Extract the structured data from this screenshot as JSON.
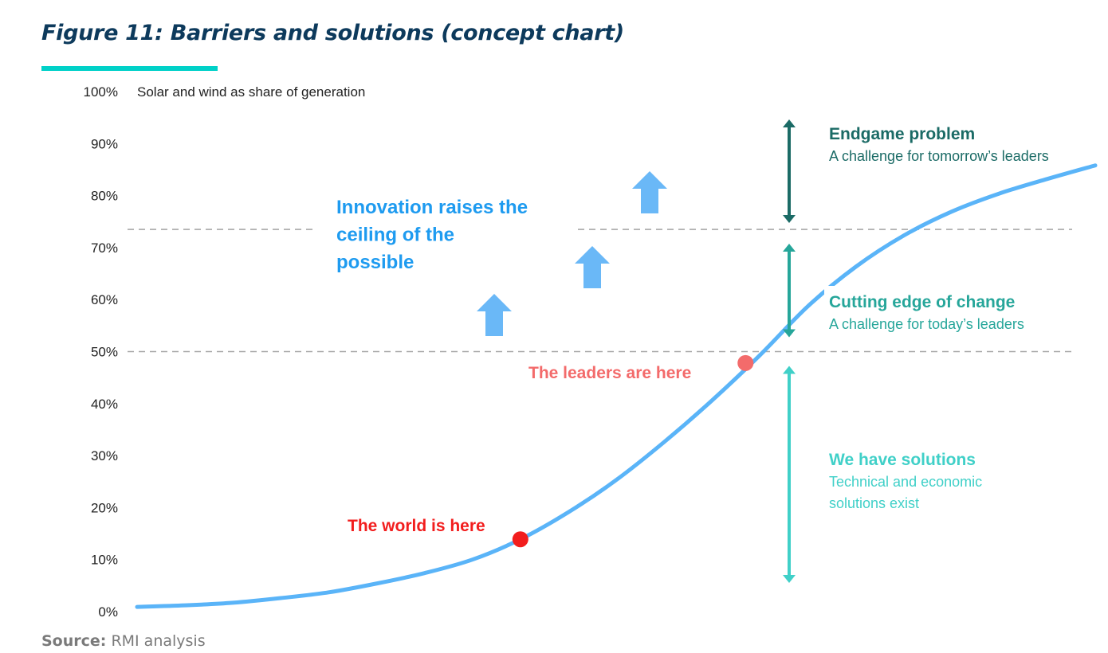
{
  "title": "Figure 11: Barriers and solutions (concept chart)",
  "source": {
    "label": "Source:",
    "text": "RMI analysis"
  },
  "chart_data": {
    "type": "line",
    "title": "Figure 11: Barriers and solutions (concept chart)",
    "ylabel": "Solar and wind as share of generation",
    "xlabel": "",
    "ylim": [
      0,
      100
    ],
    "yticks": [
      "0%",
      "10%",
      "20%",
      "30%",
      "40%",
      "50%",
      "60%",
      "70%",
      "80%",
      "90%",
      "100%"
    ],
    "grid": false,
    "x": [
      0,
      1,
      2,
      3,
      4,
      5,
      6,
      7,
      8,
      9,
      10,
      11,
      12,
      13,
      14,
      15,
      16,
      17,
      18,
      19,
      20
    ],
    "values": [
      0.9,
      1.2,
      1.7,
      2.6,
      3.7,
      5.4,
      7.4,
      10,
      13.9,
      19.1,
      25.3,
      32.6,
      40.6,
      49.3,
      58.7,
      66.3,
      72.3,
      76.9,
      80.4,
      83.2,
      85.8
    ],
    "line_color": "#5ab4f8",
    "thresholds": [
      {
        "value": 50,
        "style": "dashed"
      },
      {
        "value": 73.5,
        "style": "dashed"
      }
    ],
    "markers": [
      {
        "label": "The world is here",
        "x": 8,
        "y": 13.9,
        "color": "#f21d1d"
      },
      {
        "label": "The leaders are here",
        "x": 12.7,
        "y": 47.8,
        "color": "#f36b6b"
      }
    ],
    "innovation": {
      "lines": [
        "Innovation raises the",
        "ceiling of the",
        "possible"
      ],
      "color": "#1e9bf0",
      "arrow_color": "#6ab8f7"
    },
    "zones": [
      {
        "title": "Endgame problem",
        "subtitle": [
          "A challenge for tomorrow’s leaders"
        ],
        "range": [
          73.5,
          95
        ],
        "color": "#1b6b66"
      },
      {
        "title": "Cutting edge of change",
        "subtitle": [
          "A challenge for today’s leaders"
        ],
        "range": [
          50,
          73.5
        ],
        "color": "#26a69a"
      },
      {
        "title": "We have solutions",
        "subtitle": [
          "Technical and economic",
          "solutions exist"
        ],
        "range": [
          5,
          50
        ],
        "color": "#40d0c8"
      }
    ]
  }
}
